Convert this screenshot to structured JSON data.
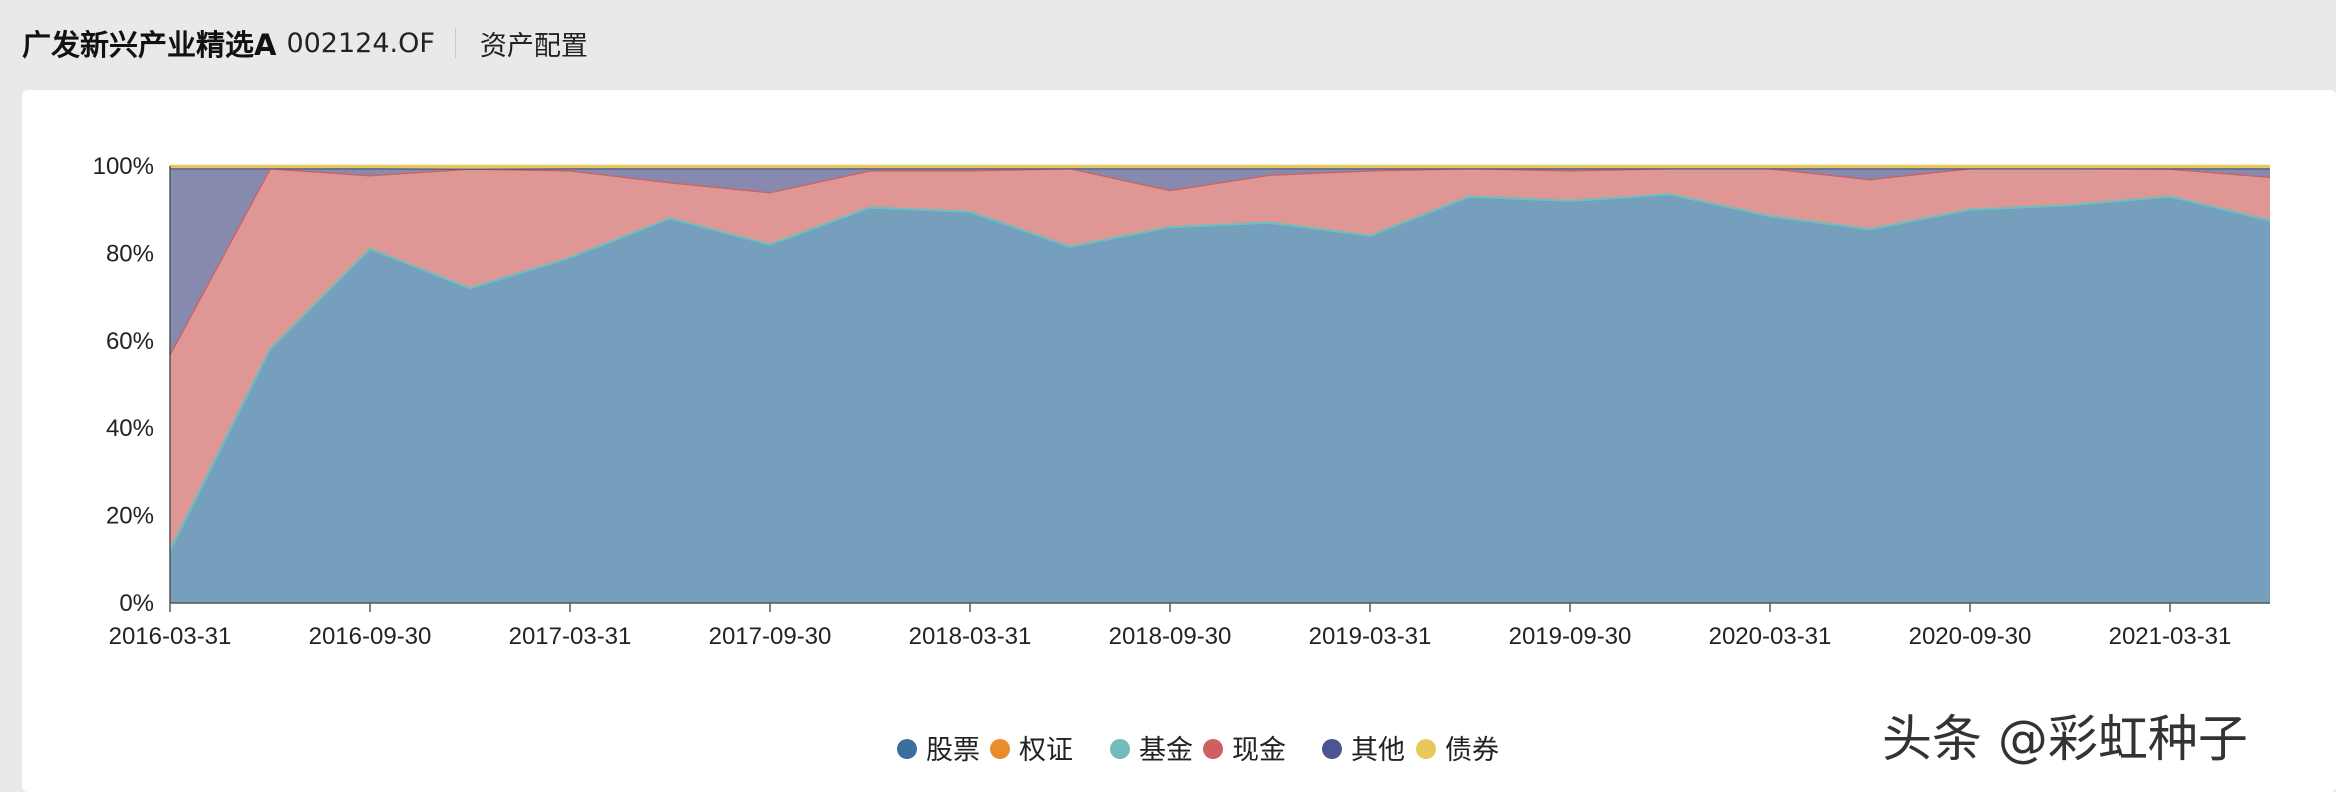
{
  "header": {
    "fund_name": "广发新兴产业精选A",
    "fund_code": "002124.OF",
    "section_label": "资产配置"
  },
  "watermark": "头条 @彩虹种子",
  "chart_data": {
    "type": "area",
    "stacked": true,
    "title": "",
    "xlabel": "",
    "ylabel": "",
    "ylim": [
      0,
      100
    ],
    "y_unit": "%",
    "y_ticks": [
      "0%",
      "20%",
      "40%",
      "60%",
      "80%",
      "100%"
    ],
    "x_tick_labels": [
      "2016-03-31",
      "2016-09-30",
      "2017-03-31",
      "2017-09-30",
      "2018-03-31",
      "2018-09-30",
      "2019-03-31",
      "2019-09-30",
      "2020-03-31",
      "2020-09-30",
      "2021-03-31"
    ],
    "x": [
      "2016-03-31",
      "2016-06-30",
      "2016-09-30",
      "2016-12-31",
      "2017-03-31",
      "2017-06-30",
      "2017-09-30",
      "2017-12-31",
      "2018-03-31",
      "2018-06-30",
      "2018-09-30",
      "2018-12-31",
      "2019-03-31",
      "2019-06-30",
      "2019-09-30",
      "2019-12-31",
      "2020-03-31",
      "2020-06-30",
      "2020-09-30",
      "2020-12-31",
      "2021-03-31",
      "2021-06-30"
    ],
    "series": [
      {
        "name": "股票",
        "color": "#3d6f9e",
        "fill": "#759fbc",
        "values": [
          12,
          58,
          81,
          72,
          79,
          88,
          82,
          90.5,
          89.5,
          81.5,
          86,
          87,
          84,
          93,
          92,
          93.5,
          88.5,
          85.5,
          90,
          91,
          93,
          87.5
        ]
      },
      {
        "name": "权证",
        "color": "#e88c2c",
        "fill": "#e88c2c",
        "values": [
          0,
          0,
          0,
          0,
          0,
          0,
          0,
          0,
          0,
          0,
          0,
          0,
          0,
          0,
          0,
          0,
          0,
          0,
          0,
          0,
          0,
          0
        ]
      },
      {
        "name": "基金",
        "color": "#73bcbd",
        "fill": "#73bcbd",
        "values": [
          0,
          0,
          0,
          0,
          0,
          0,
          0,
          0,
          0,
          0,
          0,
          0,
          0,
          0,
          0,
          0,
          0,
          0,
          0,
          0,
          0,
          0
        ]
      },
      {
        "name": "现金",
        "color": "#d0605e",
        "fill": "#df9796",
        "values": [
          45,
          41.5,
          16.9,
          27.4,
          20,
          8.3,
          12,
          8.5,
          9.5,
          18,
          8.5,
          11,
          15,
          6.5,
          7,
          6,
          11,
          11.5,
          9.5,
          8.5,
          6.4,
          10
        ]
      },
      {
        "name": "其他",
        "color": "#4a5591",
        "fill": "#878aae",
        "values": [
          42.5,
          0,
          1.6,
          0,
          0.5,
          3.2,
          5.5,
          0.5,
          0.5,
          0,
          5,
          1.5,
          0.5,
          0,
          0.5,
          0,
          0,
          2.5,
          0,
          0,
          0.1,
          2
        ]
      },
      {
        "name": "债券",
        "color": "#e6c95a",
        "fill": "#e6c95a",
        "values": [
          0.5,
          0.5,
          0.5,
          0.6,
          0.5,
          0.5,
          0.5,
          0.5,
          0.5,
          0.5,
          0.5,
          0.5,
          0.5,
          0.5,
          0.5,
          0.5,
          0.5,
          0.5,
          0.5,
          0.5,
          0.5,
          0.5
        ]
      }
    ],
    "legend_position": "bottom-center",
    "grid": "horizontal dashed"
  }
}
